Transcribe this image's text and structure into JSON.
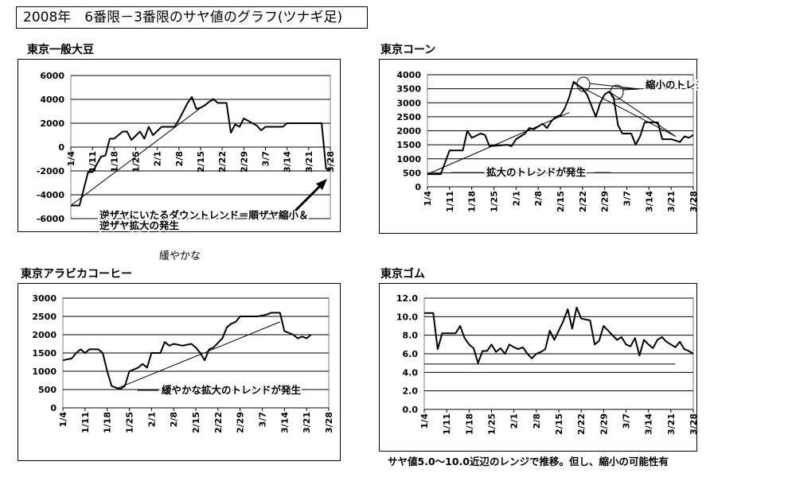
{
  "page": {
    "title": "2008年　6番限－3番限のサヤ値のグラフ(ツナギ足)",
    "loose_note": "緩やかな"
  },
  "chart_data": [
    {
      "id": "soy",
      "type": "line",
      "title": "東京一般大豆",
      "xlabel": "",
      "ylabel": "",
      "ylim": [
        -6000,
        6000
      ],
      "yticks": [
        -6000,
        -4000,
        -2000,
        0,
        2000,
        4000,
        6000
      ],
      "ytick_labels": [
        "-6000",
        "-4000",
        "-2000",
        "0",
        "2000",
        "4000",
        "6000"
      ],
      "grid": true,
      "legend": "none",
      "x_tick_labels": [
        "1/4",
        "1/11",
        "1/18",
        "1/25",
        "2/1",
        "2/8",
        "2/15",
        "2/22",
        "2/29",
        "3/7",
        "3/14",
        "3/21",
        "3/28"
      ],
      "x_tick_pos": [
        0,
        5,
        10,
        15,
        20,
        25,
        30,
        35,
        40,
        45,
        50,
        55,
        60
      ],
      "x_max": 60,
      "series": [
        {
          "values": [
            [
              0,
              -4900
            ],
            [
              2,
              -4900
            ],
            [
              4,
              -2100
            ],
            [
              5,
              -2100
            ],
            [
              7,
              -800
            ],
            [
              8,
              -700
            ],
            [
              9,
              700
            ],
            [
              10,
              700
            ],
            [
              12,
              1300
            ],
            [
              13,
              1300
            ],
            [
              14,
              600
            ],
            [
              16,
              1300
            ],
            [
              17,
              700
            ],
            [
              18,
              1700
            ],
            [
              19,
              1000
            ],
            [
              21,
              1700
            ],
            [
              24,
              1700
            ],
            [
              25,
              2300
            ],
            [
              26,
              3000
            ],
            [
              27,
              3700
            ],
            [
              28,
              4200
            ],
            [
              29,
              3200
            ],
            [
              30,
              3300
            ],
            [
              31,
              3500
            ],
            [
              32,
              3800
            ],
            [
              33,
              4000
            ],
            [
              34,
              3700
            ],
            [
              36,
              3700
            ],
            [
              37,
              1200
            ],
            [
              38,
              1900
            ],
            [
              39,
              1700
            ],
            [
              40,
              2400
            ],
            [
              41,
              2200
            ],
            [
              42,
              2000
            ],
            [
              43,
              1800
            ],
            [
              44,
              1400
            ],
            [
              45,
              1700
            ],
            [
              49,
              1700
            ],
            [
              50,
              2000
            ],
            [
              58,
              2000
            ],
            [
              59,
              -1800
            ],
            [
              60,
              -2000
            ]
          ]
        }
      ],
      "trendlines": [
        [
          0,
          -4900,
          33,
          4100
        ]
      ],
      "annotations": [
        {
          "text": "逆ザヤにいたるダウントレンド＝順ザヤ縮小＆"
        },
        {
          "text": "逆ザヤ拡大の発生"
        }
      ]
    },
    {
      "id": "corn",
      "type": "line",
      "title": "東京コーン",
      "xlabel": "",
      "ylabel": "",
      "ylim": [
        0,
        4000
      ],
      "yticks": [
        0,
        500,
        1000,
        1500,
        2000,
        2500,
        3000,
        3500,
        4000
      ],
      "ytick_labels": [
        "0",
        "500",
        "1000",
        "1500",
        "2000",
        "2500",
        "3000",
        "3500",
        "4000"
      ],
      "grid": true,
      "legend": "none",
      "x_tick_labels": [
        "1/4",
        "1/11",
        "1/18",
        "1/25",
        "2/1",
        "2/8",
        "2/15",
        "2/22",
        "2/29",
        "3/7",
        "3/14",
        "3/21",
        "3/28"
      ],
      "x_tick_pos": [
        0,
        5,
        10,
        15,
        20,
        25,
        30,
        35,
        40,
        45,
        50,
        55,
        60
      ],
      "x_max": 60,
      "series": [
        {
          "values": [
            [
              0,
              450
            ],
            [
              3,
              450
            ],
            [
              5,
              1300
            ],
            [
              8,
              1300
            ],
            [
              9,
              2000
            ],
            [
              10,
              1750
            ],
            [
              12,
              1900
            ],
            [
              13,
              1850
            ],
            [
              14,
              1450
            ],
            [
              18,
              1500
            ],
            [
              19,
              1450
            ],
            [
              20,
              1700
            ],
            [
              22,
              1900
            ],
            [
              23,
              2100
            ],
            [
              24,
              2050
            ],
            [
              26,
              2250
            ],
            [
              27,
              2100
            ],
            [
              28,
              2350
            ],
            [
              29,
              2500
            ],
            [
              30,
              2550
            ],
            [
              31,
              2800
            ],
            [
              32,
              3200
            ],
            [
              33,
              3750
            ],
            [
              35,
              3500
            ],
            [
              36,
              3300
            ],
            [
              37,
              2900
            ],
            [
              38,
              2500
            ],
            [
              39,
              3000
            ],
            [
              40,
              3300
            ],
            [
              41,
              3400
            ],
            [
              42,
              3200
            ],
            [
              43,
              2200
            ],
            [
              44,
              1900
            ],
            [
              46,
              1900
            ],
            [
              47,
              1500
            ],
            [
              48,
              1800
            ],
            [
              49,
              2300
            ],
            [
              52,
              2300
            ],
            [
              53,
              1700
            ],
            [
              55,
              1700
            ],
            [
              57,
              1600
            ],
            [
              58,
              1800
            ],
            [
              59,
              1750
            ],
            [
              60,
              1850
            ]
          ]
        }
      ],
      "trendlines": [
        [
          0,
          450,
          32,
          2650
        ],
        [
          33,
          3700,
          56,
          1800
        ],
        [
          41,
          3400,
          56,
          1800
        ]
      ],
      "annotations": [
        {
          "text": "縮小のトレンド"
        },
        {
          "text": "拡大のトレンドが発生"
        }
      ]
    },
    {
      "id": "arabica",
      "type": "line",
      "title": "東京アラビカコーヒー",
      "xlabel": "",
      "ylabel": "",
      "ylim": [
        0,
        3000
      ],
      "yticks": [
        0,
        500,
        1000,
        1500,
        2000,
        2500,
        3000
      ],
      "ytick_labels": [
        "0",
        "500",
        "1000",
        "1500",
        "2000",
        "2500",
        "3000"
      ],
      "grid": true,
      "legend": "none",
      "x_tick_labels": [
        "1/4",
        "1/11",
        "1/18",
        "1/25",
        "2/1",
        "2/8",
        "2/15",
        "2/22",
        "2/29",
        "3/7",
        "3/14",
        "3/21",
        "3/28"
      ],
      "x_tick_pos": [
        0,
        5,
        10,
        15,
        20,
        25,
        30,
        35,
        40,
        45,
        50,
        55,
        60
      ],
      "x_max": 60,
      "series": [
        {
          "values": [
            [
              0,
              1300
            ],
            [
              2,
              1350
            ],
            [
              3,
              1500
            ],
            [
              4,
              1600
            ],
            [
              5,
              1500
            ],
            [
              6,
              1600
            ],
            [
              8,
              1600
            ],
            [
              9,
              1500
            ],
            [
              10,
              1000
            ],
            [
              11,
              600
            ],
            [
              12,
              550
            ],
            [
              13,
              520
            ],
            [
              14,
              600
            ],
            [
              15,
              1000
            ],
            [
              17,
              1100
            ],
            [
              18,
              1200
            ],
            [
              19,
              1100
            ],
            [
              20,
              1500
            ],
            [
              22,
              1500
            ],
            [
              23,
              1800
            ],
            [
              24,
              1700
            ],
            [
              25,
              1750
            ],
            [
              27,
              1700
            ],
            [
              29,
              1750
            ],
            [
              30,
              1650
            ],
            [
              31,
              1500
            ],
            [
              32,
              1300
            ],
            [
              33,
              1600
            ],
            [
              34,
              1650
            ],
            [
              36,
              1900
            ],
            [
              37,
              2200
            ],
            [
              38,
              2300
            ],
            [
              39,
              2350
            ],
            [
              40,
              2500
            ],
            [
              44,
              2500
            ],
            [
              46,
              2550
            ],
            [
              47,
              2600
            ],
            [
              49,
              2600
            ],
            [
              50,
              2100
            ],
            [
              52,
              2000
            ],
            [
              53,
              1900
            ],
            [
              54,
              1950
            ],
            [
              55,
              1900
            ],
            [
              56,
              2000
            ]
          ]
        }
      ],
      "trendlines": [
        [
          12,
          520,
          49,
          2350
        ]
      ],
      "annotations": [
        {
          "text": "緩やかな拡大のトレンドが発生"
        }
      ]
    },
    {
      "id": "rubber",
      "type": "line",
      "title": "東京ゴム",
      "xlabel": "",
      "ylabel": "",
      "ylim": [
        0,
        12
      ],
      "yticks": [
        0,
        2,
        4,
        6,
        8,
        10,
        12
      ],
      "ytick_labels": [
        "0.0",
        "2.0",
        "4.0",
        "6.0",
        "8.0",
        "10.0",
        "12.0"
      ],
      "grid": true,
      "legend": "none",
      "x_tick_labels": [
        "1/4",
        "1/11",
        "1/18",
        "1/25",
        "2/1",
        "2/8",
        "2/15",
        "2/22",
        "2/29",
        "3/7",
        "3/14",
        "3/21",
        "3/28"
      ],
      "x_tick_pos": [
        0,
        5,
        10,
        15,
        20,
        25,
        30,
        35,
        40,
        45,
        50,
        55,
        60
      ],
      "x_max": 60,
      "series": [
        {
          "values": [
            [
              0,
              10.4
            ],
            [
              2,
              10.4
            ],
            [
              3,
              6.5
            ],
            [
              4,
              8.2
            ],
            [
              7,
              8.2
            ],
            [
              8,
              9.0
            ],
            [
              9,
              7.7
            ],
            [
              10,
              7.0
            ],
            [
              11,
              6.6
            ],
            [
              12,
              5.0
            ],
            [
              13,
              6.3
            ],
            [
              14,
              6.3
            ],
            [
              15,
              7.0
            ],
            [
              16,
              6.2
            ],
            [
              17,
              6.6
            ],
            [
              18,
              6.0
            ],
            [
              19,
              7.0
            ],
            [
              20,
              6.7
            ],
            [
              21,
              6.5
            ],
            [
              22,
              6.7
            ],
            [
              23,
              6.0
            ],
            [
              24,
              5.5
            ],
            [
              25,
              6.0
            ],
            [
              26,
              6.2
            ],
            [
              27,
              6.5
            ],
            [
              28,
              8.5
            ],
            [
              29,
              7.5
            ],
            [
              30,
              8.5
            ],
            [
              31,
              9.5
            ],
            [
              32,
              10.8
            ],
            [
              33,
              8.7
            ],
            [
              34,
              11.0
            ],
            [
              35,
              9.8
            ],
            [
              37,
              9.6
            ],
            [
              38,
              7.0
            ],
            [
              39,
              7.4
            ],
            [
              40,
              9.0
            ],
            [
              41,
              8.5
            ],
            [
              42,
              8.0
            ],
            [
              43,
              7.5
            ],
            [
              44,
              7.8
            ],
            [
              45,
              7.0
            ],
            [
              46,
              6.8
            ],
            [
              47,
              7.7
            ],
            [
              48,
              5.8
            ],
            [
              49,
              7.5
            ],
            [
              50,
              7.0
            ],
            [
              51,
              6.6
            ],
            [
              52,
              7.5
            ],
            [
              53,
              7.8
            ],
            [
              54,
              7.3
            ],
            [
              55,
              7.0
            ],
            [
              56,
              6.7
            ],
            [
              57,
              7.3
            ],
            [
              58,
              6.5
            ],
            [
              59,
              6.3
            ],
            [
              60,
              6.0
            ]
          ]
        }
      ],
      "trendlines": [
        [
          0,
          4.9,
          56,
          4.9
        ]
      ],
      "annotations": [
        {
          "text": "サヤ値5.0～10.0近辺のレンジで推移。但し、縮小の可能性有"
        }
      ]
    }
  ]
}
